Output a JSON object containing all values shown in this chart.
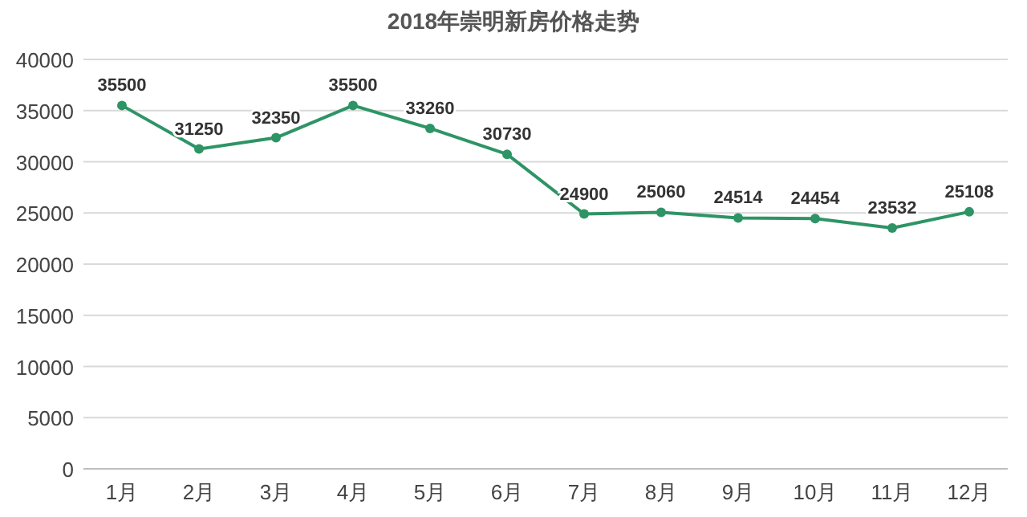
{
  "chart_data": {
    "type": "line",
    "title": "2018年崇明新房价格走势",
    "categories": [
      "1月",
      "2月",
      "3月",
      "4月",
      "5月",
      "6月",
      "7月",
      "8月",
      "9月",
      "10月",
      "11月",
      "12月"
    ],
    "series": [
      {
        "color": "#2e9466",
        "values": [
          35500,
          31250,
          32350,
          35500,
          33260,
          30730,
          24900,
          25060,
          24514,
          24454,
          23532,
          25108
        ]
      }
    ],
    "ylim": [
      0,
      40000
    ],
    "yticks": [
      0,
      5000,
      10000,
      15000,
      20000,
      25000,
      30000,
      35000,
      40000
    ],
    "grid": "y",
    "marker": "circle",
    "data_labels": true
  }
}
